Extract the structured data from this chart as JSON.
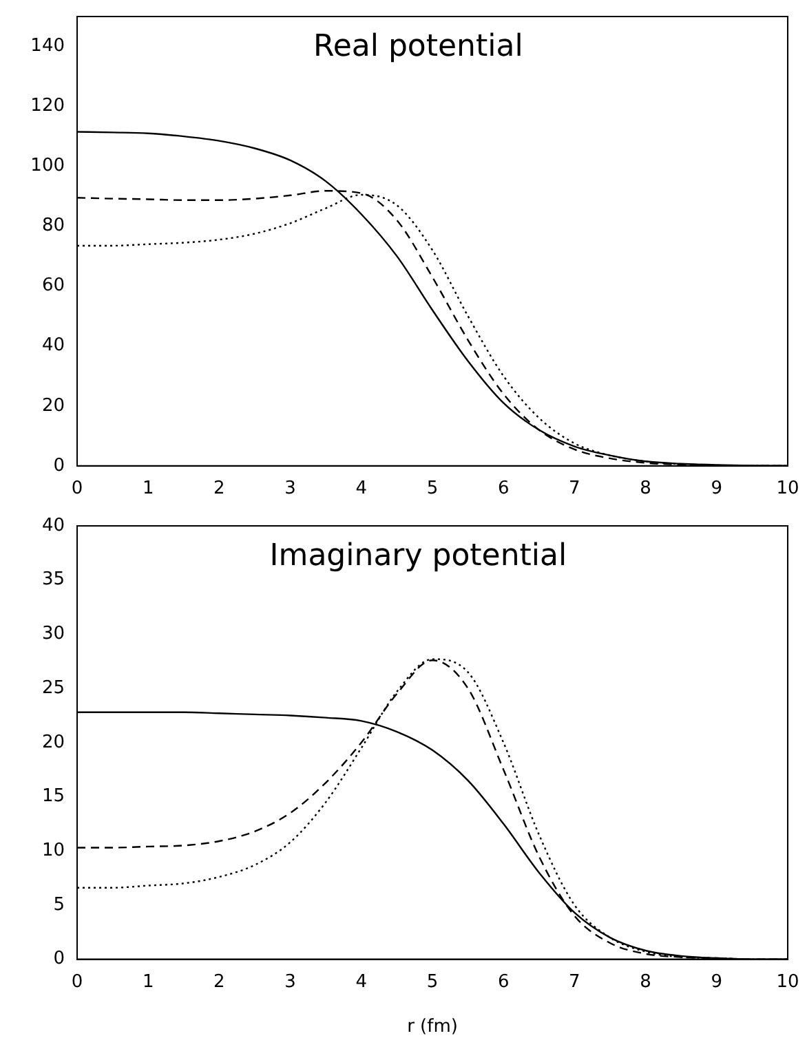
{
  "chart_data": [
    {
      "type": "line",
      "title": "Real potential",
      "x": [
        0,
        0.5,
        1,
        1.5,
        2,
        2.5,
        3,
        3.5,
        4,
        4.5,
        5,
        5.5,
        6,
        6.5,
        7,
        7.5,
        8,
        8.5,
        9,
        9.5,
        10
      ],
      "xlim": [
        0,
        10
      ],
      "xticks": [
        0,
        1,
        2,
        3,
        4,
        5,
        6,
        7,
        8,
        9,
        10
      ],
      "ylim": [
        0,
        150
      ],
      "yticks": [
        0,
        20,
        40,
        60,
        80,
        100,
        120,
        140
      ],
      "grid": false,
      "legend": false,
      "marker": "none",
      "series": [
        {
          "color": "#000000",
          "line_style": "solid",
          "values": [
            111.5,
            111.3,
            111,
            110,
            108.5,
            106,
            102,
            95,
            84,
            70,
            52,
            35,
            21,
            12,
            6.5,
            3.5,
            1.5,
            0.7,
            0.3,
            0.1,
            0
          ]
        },
        {
          "color": "#000000",
          "line_style": "dashed",
          "values": [
            89.5,
            89.2,
            89,
            88.7,
            88.7,
            89.2,
            90.3,
            91.8,
            91,
            82,
            63,
            42,
            24,
            12,
            5.5,
            2.5,
            1,
            0.4,
            0.1,
            0,
            0
          ]
        },
        {
          "color": "#000000",
          "line_style": "dotted",
          "values": [
            73.5,
            73.5,
            74,
            74.5,
            75.5,
            77.5,
            81,
            86,
            90.5,
            87,
            72,
            50,
            30,
            16,
            7.5,
            3.5,
            1.5,
            0.6,
            0.2,
            0.1,
            0
          ]
        }
      ]
    },
    {
      "type": "line",
      "title": "Imaginary potential",
      "xlabel": "r (fm)",
      "x": [
        0,
        0.5,
        1,
        1.5,
        2,
        2.5,
        3,
        3.5,
        4,
        4.5,
        5,
        5.5,
        6,
        6.5,
        7,
        7.5,
        8,
        8.5,
        9,
        9.5,
        10
      ],
      "xlim": [
        0,
        10
      ],
      "xticks": [
        0,
        1,
        2,
        3,
        4,
        5,
        6,
        7,
        8,
        9,
        10
      ],
      "ylim": [
        0,
        40
      ],
      "yticks": [
        0,
        5,
        10,
        15,
        20,
        25,
        30,
        35,
        40
      ],
      "grid": false,
      "legend": false,
      "marker": "none",
      "series": [
        {
          "color": "#000000",
          "line_style": "solid",
          "values": [
            22.8,
            22.8,
            22.8,
            22.8,
            22.7,
            22.6,
            22.5,
            22.3,
            22,
            21,
            19.3,
            16.5,
            12.5,
            8,
            4.3,
            2,
            0.8,
            0.3,
            0.1,
            0,
            0
          ]
        },
        {
          "color": "#000000",
          "line_style": "dashed",
          "values": [
            10.3,
            10.3,
            10.4,
            10.5,
            10.9,
            11.8,
            13.5,
            16.3,
            20,
            24.5,
            27.6,
            25,
            17.5,
            9.5,
            4,
            1.5,
            0.5,
            0.2,
            0.1,
            0,
            0
          ]
        },
        {
          "color": "#000000",
          "line_style": "dotted",
          "values": [
            6.6,
            6.6,
            6.8,
            7,
            7.6,
            8.7,
            10.8,
            14.5,
            19.5,
            24.7,
            27.7,
            26.5,
            20,
            11.5,
            5,
            2,
            0.7,
            0.2,
            0.1,
            0,
            0
          ]
        }
      ]
    }
  ]
}
